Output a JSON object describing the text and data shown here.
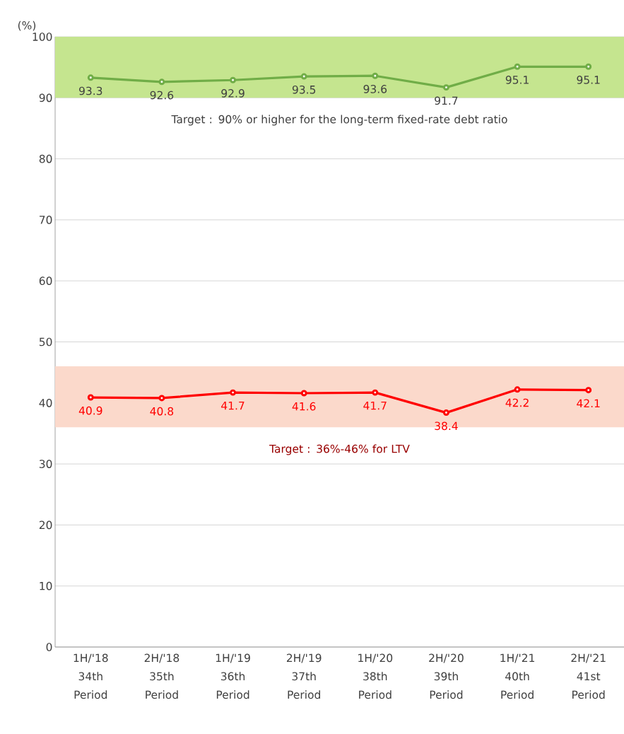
{
  "chart_data": {
    "type": "line",
    "ylabel": "(%)",
    "categories": [
      "1H/'18 34th Period",
      "2H/'18 35th Period",
      "1H/'19 36th Period",
      "2H/'19 37th Period",
      "1H/'20 38th Period",
      "2H/'20 39th Period",
      "1H/'21 40th Period",
      "2H/'21 41st Period"
    ],
    "series": [
      {
        "color": "#70ad47",
        "values": [
          93.3,
          92.6,
          92.9,
          93.5,
          93.6,
          91.7,
          95.1,
          95.1
        ]
      },
      {
        "color": "#ff0000",
        "values": [
          40.9,
          40.8,
          41.7,
          41.6,
          41.7,
          38.4,
          42.2,
          42.1
        ]
      }
    ],
    "ylim": [
      0,
      100
    ],
    "yticks": [
      0,
      10,
      20,
      30,
      40,
      50,
      60,
      70,
      80,
      90,
      100
    ],
    "bands": [
      {
        "axis": "y",
        "from": 90,
        "to": 100,
        "label": "Target : 90% or higher for the long-term fixed-rate debt ratio",
        "color": "#c5e58f"
      },
      {
        "axis": "y",
        "from": 36,
        "to": 46,
        "label": "Target : 36%-46% for LTV",
        "color": "#fbd9cb"
      }
    ],
    "grid": "y",
    "marker": "circle",
    "line_style": "solid",
    "data_labels": true
  }
}
